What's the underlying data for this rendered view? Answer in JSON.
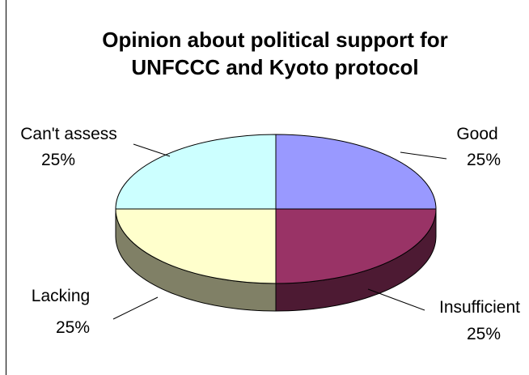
{
  "chart_data": {
    "type": "pie",
    "title_lines": [
      "Opinion about political support for",
      "UNFCCC and Kyoto protocol"
    ],
    "slices": [
      {
        "label": "Good",
        "value": 25,
        "value_label": "25%",
        "color": "#9999FF",
        "side_color": "#5C5C99"
      },
      {
        "label": "Insufficient",
        "value": 25,
        "value_label": "25%",
        "color": "#993366",
        "side_color": "#4D1A33"
      },
      {
        "label": "Lacking",
        "value": 25,
        "value_label": "25%",
        "color": "#FFFFCC",
        "side_color": "#808066"
      },
      {
        "label": "Can't assess",
        "value": 25,
        "value_label": "25%",
        "color": "#CCFFFF",
        "side_color": "#668080"
      }
    ],
    "style": "3d-pie",
    "legend": "none"
  }
}
